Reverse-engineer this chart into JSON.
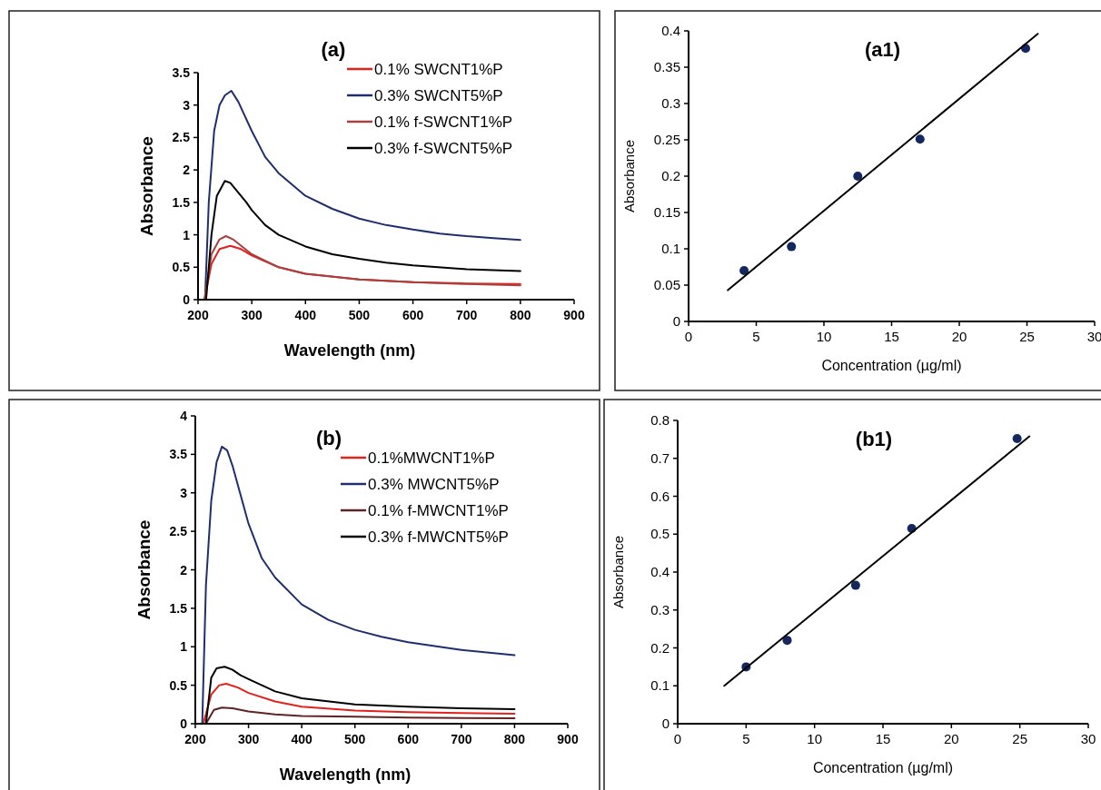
{
  "chart_data": [
    {
      "type": "line",
      "title": "(a)",
      "xlabel": "Wavelength (nm)",
      "ylabel": "Absorbance",
      "xlim": [
        200,
        900
      ],
      "xticks": [
        200,
        300,
        400,
        500,
        600,
        700,
        800,
        900
      ],
      "ylim": [
        0,
        3.5
      ],
      "yticks": [
        0,
        0.5,
        1,
        1.5,
        2,
        2.5,
        3,
        3.5
      ],
      "legend": "top right",
      "grid": false,
      "series": [
        {
          "name": "0.1% SWCNT1%P",
          "color": "#e3221c",
          "x": [
            212,
            225,
            240,
            260,
            280,
            300,
            350,
            400,
            500,
            600,
            700,
            800
          ],
          "values": [
            0,
            0.55,
            0.78,
            0.83,
            0.78,
            0.68,
            0.5,
            0.4,
            0.31,
            0.27,
            0.25,
            0.24
          ]
        },
        {
          "name": "0.3% SWCNT5%P",
          "color": "#1f2f6e",
          "x": [
            213,
            220,
            230,
            240,
            250,
            262,
            275,
            300,
            325,
            350,
            400,
            450,
            500,
            550,
            600,
            650,
            700,
            750,
            800
          ],
          "values": [
            0,
            1.5,
            2.6,
            3.0,
            3.15,
            3.22,
            3.05,
            2.6,
            2.2,
            1.95,
            1.6,
            1.4,
            1.25,
            1.15,
            1.08,
            1.02,
            0.98,
            0.95,
            0.92
          ]
        },
        {
          "name": "0.1% f-SWCNT1%P",
          "color": "#a8403f",
          "x": [
            212,
            225,
            240,
            252,
            265,
            300,
            350,
            400,
            500,
            600,
            700,
            800
          ],
          "values": [
            0,
            0.7,
            0.93,
            0.98,
            0.93,
            0.7,
            0.5,
            0.4,
            0.31,
            0.27,
            0.24,
            0.22
          ]
        },
        {
          "name": "0.3% f-SWCNT5%P",
          "color": "#000000",
          "x": [
            215,
            225,
            235,
            250,
            260,
            275,
            290,
            300,
            325,
            350,
            400,
            450,
            500,
            550,
            600,
            700,
            800
          ],
          "values": [
            0,
            1.0,
            1.6,
            1.83,
            1.8,
            1.65,
            1.5,
            1.38,
            1.15,
            1.0,
            0.82,
            0.7,
            0.63,
            0.57,
            0.53,
            0.47,
            0.44
          ]
        }
      ]
    },
    {
      "type": "scatter",
      "title": "(a1)",
      "xlabel": "Concentration (µg/ml)",
      "ylabel": "Absorbance",
      "xlim": [
        0,
        30
      ],
      "xticks": [
        0,
        5,
        10,
        15,
        20,
        25,
        30
      ],
      "ylim": [
        0,
        0.4
      ],
      "yticks": [
        0,
        0.05,
        0.1,
        0.15,
        0.2,
        0.25,
        0.3,
        0.35,
        0.4
      ],
      "grid": false,
      "series": [
        {
          "color": "#14275e",
          "marker": "circle",
          "x": [
            4.1,
            7.6,
            12.5,
            17.1,
            24.9
          ],
          "values": [
            0.07,
            0.103,
            0.2,
            0.251,
            0.376
          ]
        },
        {
          "type": "line",
          "color": "#000000",
          "x": [
            2.9,
            25.8
          ],
          "values": [
            0.043,
            0.396
          ]
        }
      ]
    },
    {
      "type": "line",
      "title": "(b)",
      "xlabel": "Wavelength (nm)",
      "ylabel": "Absorbance",
      "xlim": [
        200,
        900
      ],
      "xticks": [
        200,
        300,
        400,
        500,
        600,
        700,
        800,
        900
      ],
      "ylim": [
        0,
        4
      ],
      "yticks": [
        0,
        0.5,
        1,
        1.5,
        2,
        2.5,
        3,
        3.5,
        4
      ],
      "legend": "top right",
      "grid": false,
      "series": [
        {
          "name": "0.1%MWCNT1%P",
          "color": "#e3221c",
          "x": [
            215,
            230,
            245,
            258,
            280,
            300,
            350,
            400,
            500,
            600,
            700,
            800
          ],
          "values": [
            0,
            0.38,
            0.5,
            0.52,
            0.47,
            0.4,
            0.29,
            0.22,
            0.17,
            0.15,
            0.14,
            0.13
          ]
        },
        {
          "name": "0.3% MWCNT5%P",
          "color": "#1f2f6e",
          "x": [
            213,
            220,
            230,
            240,
            250,
            260,
            270,
            300,
            325,
            350,
            400,
            450,
            500,
            550,
            600,
            700,
            800
          ],
          "values": [
            0,
            1.8,
            2.9,
            3.4,
            3.6,
            3.55,
            3.35,
            2.6,
            2.15,
            1.9,
            1.55,
            1.35,
            1.22,
            1.13,
            1.06,
            0.96,
            0.89
          ]
        },
        {
          "name": "0.1% f-MWCNT1%P",
          "color": "#5e2424",
          "x": [
            220,
            235,
            250,
            270,
            300,
            350,
            400,
            500,
            600,
            800
          ],
          "values": [
            0,
            0.18,
            0.21,
            0.2,
            0.16,
            0.12,
            0.1,
            0.09,
            0.08,
            0.07
          ]
        },
        {
          "name": "0.3% f-MWCNT5%P",
          "color": "#000000",
          "x": [
            220,
            230,
            240,
            255,
            270,
            285,
            300,
            350,
            400,
            500,
            600,
            700,
            800
          ],
          "values": [
            0,
            0.6,
            0.72,
            0.74,
            0.7,
            0.63,
            0.58,
            0.42,
            0.33,
            0.25,
            0.22,
            0.2,
            0.19
          ]
        }
      ]
    },
    {
      "type": "scatter",
      "title": "(b1)",
      "xlabel": "Concentration (µg/ml)",
      "ylabel": "Absorbance",
      "xlim": [
        0,
        30
      ],
      "xticks": [
        0,
        5,
        10,
        15,
        20,
        25,
        30
      ],
      "ylim": [
        0,
        0.8
      ],
      "yticks": [
        0,
        0.1,
        0.2,
        0.3,
        0.4,
        0.5,
        0.6,
        0.7,
        0.8
      ],
      "grid": false,
      "series": [
        {
          "color": "#14275e",
          "marker": "circle",
          "x": [
            5,
            8,
            13,
            17.1,
            24.8
          ],
          "values": [
            0.15,
            0.22,
            0.365,
            0.515,
            0.752
          ]
        },
        {
          "type": "line",
          "color": "#000000",
          "x": [
            3.4,
            25.7
          ],
          "values": [
            0.1,
            0.758
          ]
        }
      ]
    }
  ]
}
